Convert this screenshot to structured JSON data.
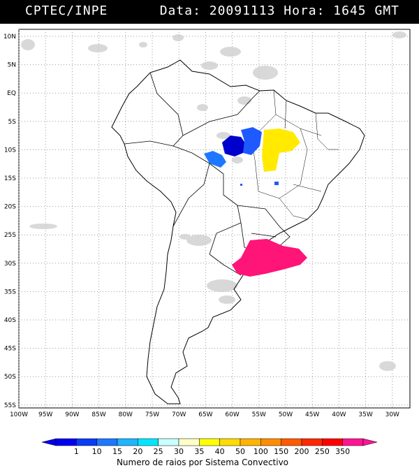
{
  "header": {
    "left": "CPTEC/INPE",
    "right": "Data: 20091113 Hora: 1645 GMT"
  },
  "map": {
    "lat_labels": [
      "10N",
      "5N",
      "EQ",
      "5S",
      "10S",
      "15S",
      "20S",
      "25S",
      "30S",
      "35S",
      "40S",
      "45S",
      "50S",
      "55S"
    ],
    "lon_labels": [
      "100W",
      "95W",
      "90W",
      "85W",
      "80W",
      "75W",
      "70W",
      "65W",
      "60W",
      "55W",
      "50W",
      "45W",
      "40W",
      "35W",
      "30W"
    ]
  },
  "legend": {
    "values": [
      "1",
      "10",
      "15",
      "20",
      "25",
      "30",
      "35",
      "40",
      "50",
      "100",
      "150",
      "200",
      "250",
      "350"
    ],
    "colors": [
      "#0000ee",
      "#0a3cf5",
      "#1e78ff",
      "#1eb4ff",
      "#00e6ff",
      "#c8ffff",
      "#ffffc8",
      "#ffff00",
      "#ffdc00",
      "#ffb400",
      "#ff8c00",
      "#ff5a00",
      "#ff2800",
      "#ff0000",
      "#ff1493"
    ],
    "caption": "Numero de raios por Sistema Convectivo"
  },
  "storms": [
    {
      "name": "blue-cluster-west",
      "color": "#0000cc"
    },
    {
      "name": "blue-cluster-east",
      "color": "#1e5aff"
    },
    {
      "name": "blue-cluster-small",
      "color": "#1e78ff"
    },
    {
      "name": "yellow-cluster",
      "color": "#ffea00"
    },
    {
      "name": "pink-cluster",
      "color": "#ff1478"
    }
  ]
}
